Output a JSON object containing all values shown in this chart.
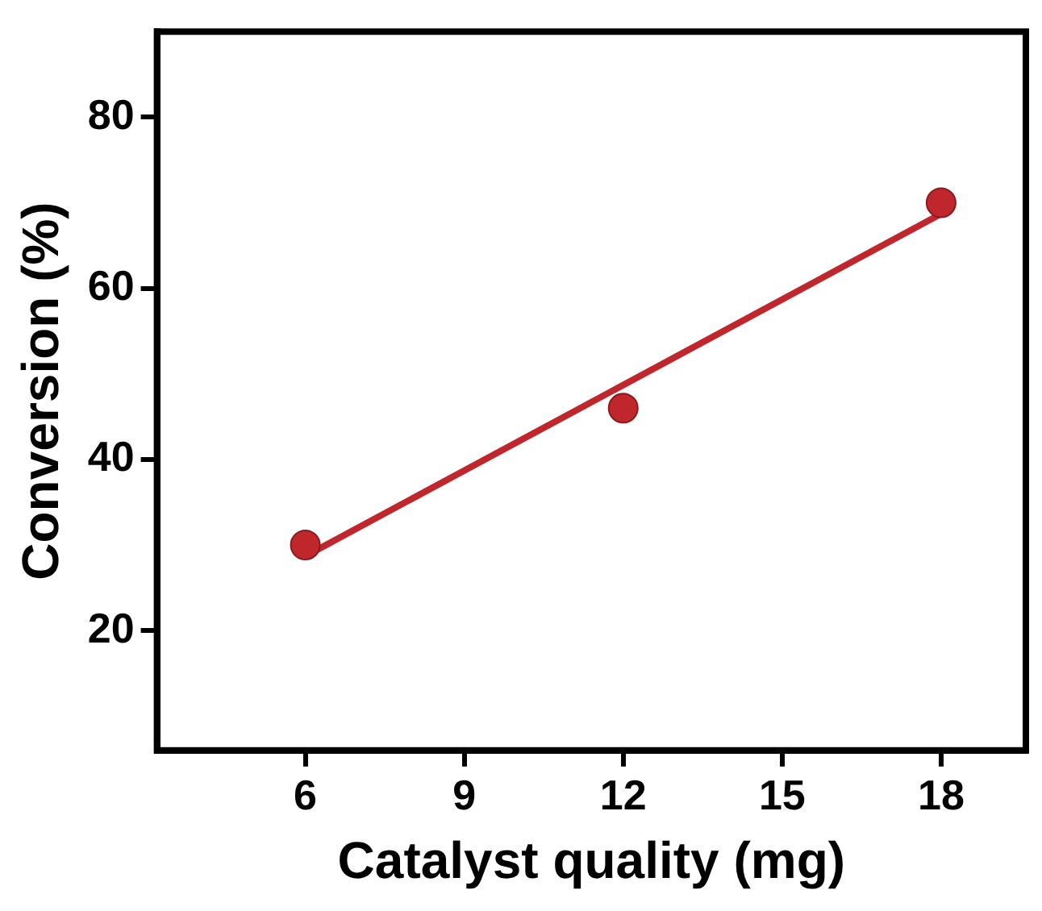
{
  "chart_data": {
    "type": "scatter",
    "xlabel": "Catalyst quality (mg)",
    "ylabel": "Conversion (%)",
    "xlim": [
      3.2,
      19.6
    ],
    "xticks": [
      6,
      9,
      12,
      15,
      18
    ],
    "ylim": [
      6,
      90
    ],
    "yticks": [
      20,
      40,
      60,
      80
    ],
    "grid": false,
    "legend": false,
    "marker": "circle",
    "series": [
      {
        "type": "scatter",
        "color": "#c0272d",
        "x": [
          6,
          12,
          18
        ],
        "values": [
          30,
          46,
          70
        ]
      },
      {
        "type": "line",
        "color": "#c0272d",
        "x": [
          6,
          18
        ],
        "values": [
          28.7,
          68.7
        ],
        "marker": "none"
      }
    ]
  }
}
